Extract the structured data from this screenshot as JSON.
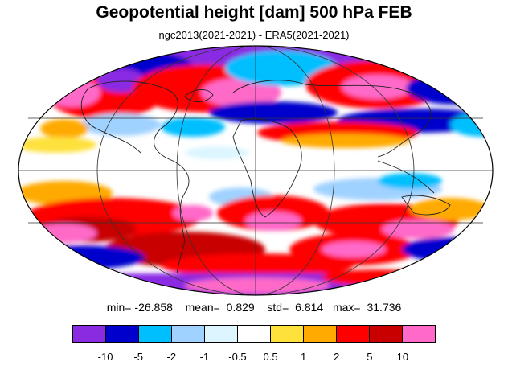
{
  "title": "Geopotential height [dam] 500 hPa FEB",
  "subtitle": "ngc2013(2021-2021) - ERA5(2021-2021)",
  "stats": {
    "min_label": "min=",
    "min": "-26.858",
    "mean_label": "mean=",
    "mean": "0.829",
    "std_label": "std=",
    "std": "6.814",
    "max_label": "max=",
    "max": "31.736"
  },
  "colorbar": {
    "colors": [
      "#8a2be2",
      "#0000cd",
      "#00bfff",
      "#a0d2ff",
      "#dcf5ff",
      "#ffffff",
      "#ffe13c",
      "#ffaa00",
      "#ff0000",
      "#c80000",
      "#ff69c8"
    ],
    "labels": [
      "-10",
      "-5",
      "-2",
      "-1",
      "-0.5",
      "0.5",
      "1",
      "2",
      "5",
      "10"
    ]
  }
}
